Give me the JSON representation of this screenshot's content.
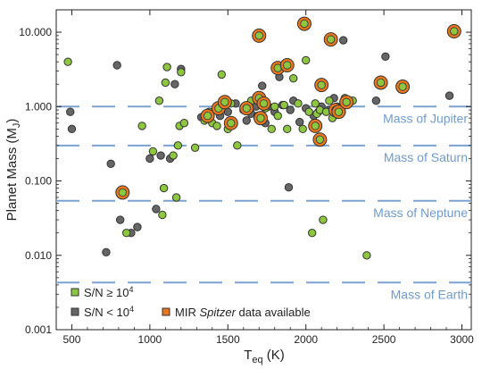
{
  "chart_data": {
    "type": "scatter",
    "xlabel_main": "T",
    "xlabel_sub": "eq",
    "xlabel_unit": " (K)",
    "ylabel_main": "Planet Mass (M",
    "ylabel_sub": "J",
    "ylabel_close": ")",
    "x_axis": {
      "range": [
        400,
        3060
      ],
      "ticks": [
        500,
        1000,
        1500,
        2000,
        2500,
        3000
      ],
      "tick_labels": [
        "500",
        "1000",
        "1500",
        "2000",
        "2500",
        "3000"
      ]
    },
    "y_axis": {
      "scale": "log",
      "range": [
        0.001,
        20
      ],
      "ticks": [
        0.001,
        0.01,
        0.1,
        1,
        10
      ],
      "tick_labels": [
        "0.001",
        "0.010",
        "0.100",
        "1.000",
        "10.000"
      ]
    },
    "reference_lines": [
      {
        "label": "Mass of Jupiter",
        "value": 1.0
      },
      {
        "label": "Mass of Saturn",
        "value": 0.3
      },
      {
        "label": "Mass of Neptune",
        "value": 0.054
      },
      {
        "label": "Mass of Earth",
        "value": 0.0043
      }
    ],
    "legend": {
      "placement": "bottom-left",
      "entries": [
        {
          "key": "green",
          "main": "S/N ≥ 10",
          "sup": "4"
        },
        {
          "key": "gray",
          "main": "S/N < 10",
          "sup": "4"
        },
        {
          "key": "ring",
          "pre": "MIR ",
          "italic": "Spitzer",
          "post": " data available"
        }
      ]
    },
    "colors": {
      "green": "#8dc63f",
      "gray": "#666666",
      "ring": "#e8761e",
      "ref_line": "#7aa3d4",
      "ref_text": "#6f9ccf",
      "outline": "#333333"
    },
    "series": [
      {
        "key": "gray",
        "points": [
          [
            490,
            0.85
          ],
          [
            500,
            0.5
          ],
          [
            720,
            0.011
          ],
          [
            750,
            0.17
          ],
          [
            790,
            3.6
          ],
          [
            810,
            0.03
          ],
          [
            880,
            0.02
          ],
          [
            920,
            0.024
          ],
          [
            1000,
            0.2
          ],
          [
            1040,
            0.042
          ],
          [
            1070,
            0.22
          ],
          [
            1130,
            0.2
          ],
          [
            1160,
            2.0
          ],
          [
            1200,
            3.2
          ],
          [
            1330,
            0.72
          ],
          [
            1450,
            0.75
          ],
          [
            1500,
            0.85
          ],
          [
            1550,
            1.1
          ],
          [
            1620,
            0.65
          ],
          [
            1650,
            0.8
          ],
          [
            1680,
            1.0
          ],
          [
            1700,
            1.4
          ],
          [
            1720,
            1.9
          ],
          [
            1740,
            0.6
          ],
          [
            1760,
            1.0
          ],
          [
            1800,
            0.85
          ],
          [
            1830,
            2.5
          ],
          [
            1850,
            1.05
          ],
          [
            1890,
            0.082
          ],
          [
            1900,
            0.9
          ],
          [
            1920,
            1.2
          ],
          [
            1960,
            0.62
          ],
          [
            2000,
            0.95
          ],
          [
            2050,
            0.75
          ],
          [
            2080,
            0.85
          ],
          [
            2100,
            1.0
          ],
          [
            2150,
            0.9
          ],
          [
            2180,
            1.3
          ],
          [
            2220,
            0.95
          ],
          [
            2240,
            7.8
          ],
          [
            2450,
            1.2
          ],
          [
            2510,
            4.7
          ],
          [
            2920,
            1.4
          ]
        ]
      },
      {
        "key": "green",
        "points": [
          [
            475,
            4.0
          ],
          [
            850,
            0.02
          ],
          [
            950,
            0.55
          ],
          [
            1020,
            0.25
          ],
          [
            1060,
            1.2
          ],
          [
            1080,
            0.035
          ],
          [
            1090,
            0.08
          ],
          [
            1100,
            2.1
          ],
          [
            1110,
            3.4
          ],
          [
            1150,
            0.22
          ],
          [
            1170,
            0.06
          ],
          [
            1180,
            0.3
          ],
          [
            1190,
            0.55
          ],
          [
            1200,
            2.9
          ],
          [
            1220,
            0.6
          ],
          [
            1290,
            0.28
          ],
          [
            1350,
            0.65
          ],
          [
            1380,
            0.85
          ],
          [
            1400,
            0.6
          ],
          [
            1430,
            0.55
          ],
          [
            1460,
            2.7
          ],
          [
            1500,
            0.5
          ],
          [
            1520,
            1.1
          ],
          [
            1560,
            0.3
          ],
          [
            1600,
            0.9
          ],
          [
            1650,
            1.2
          ],
          [
            1690,
            0.75
          ],
          [
            1710,
            1.4
          ],
          [
            1740,
            0.95
          ],
          [
            1780,
            0.5
          ],
          [
            1800,
            1.0
          ],
          [
            1820,
            0.75
          ],
          [
            1860,
            1.05
          ],
          [
            1880,
            0.5
          ],
          [
            1920,
            2.4
          ],
          [
            1950,
            1.1
          ],
          [
            1980,
            0.5
          ],
          [
            2000,
            4.2
          ],
          [
            2020,
            0.85
          ],
          [
            2040,
            0.02
          ],
          [
            2060,
            1.1
          ],
          [
            2070,
            0.8
          ],
          [
            2090,
            0.9
          ],
          [
            2110,
            0.03
          ],
          [
            2130,
            0.85
          ],
          [
            2150,
            1.2
          ],
          [
            2170,
            0.7
          ],
          [
            2200,
            1.0
          ],
          [
            2230,
            0.85
          ],
          [
            2250,
            1.3
          ],
          [
            2300,
            1.2
          ],
          [
            2390,
            0.01
          ],
          [
            2470,
            2.0
          ]
        ]
      },
      {
        "key": "ring",
        "points": [
          [
            825,
            0.07
          ],
          [
            1370,
            0.75
          ],
          [
            1440,
            0.95
          ],
          [
            1480,
            1.15
          ],
          [
            1520,
            0.6
          ],
          [
            1620,
            0.95
          ],
          [
            1700,
            9.0
          ],
          [
            1700,
            1.3
          ],
          [
            1710,
            0.7
          ],
          [
            1730,
            1.1
          ],
          [
            1820,
            3.3
          ],
          [
            1880,
            3.6
          ],
          [
            1990,
            13.0
          ],
          [
            2060,
            0.55
          ],
          [
            2090,
            0.36
          ],
          [
            2100,
            1.95
          ],
          [
            2160,
            8.0
          ],
          [
            2190,
            0.9
          ],
          [
            2210,
            0.85
          ],
          [
            2260,
            1.15
          ],
          [
            2480,
            2.1
          ],
          [
            2620,
            1.85
          ],
          [
            2950,
            10.3
          ]
        ]
      }
    ]
  }
}
